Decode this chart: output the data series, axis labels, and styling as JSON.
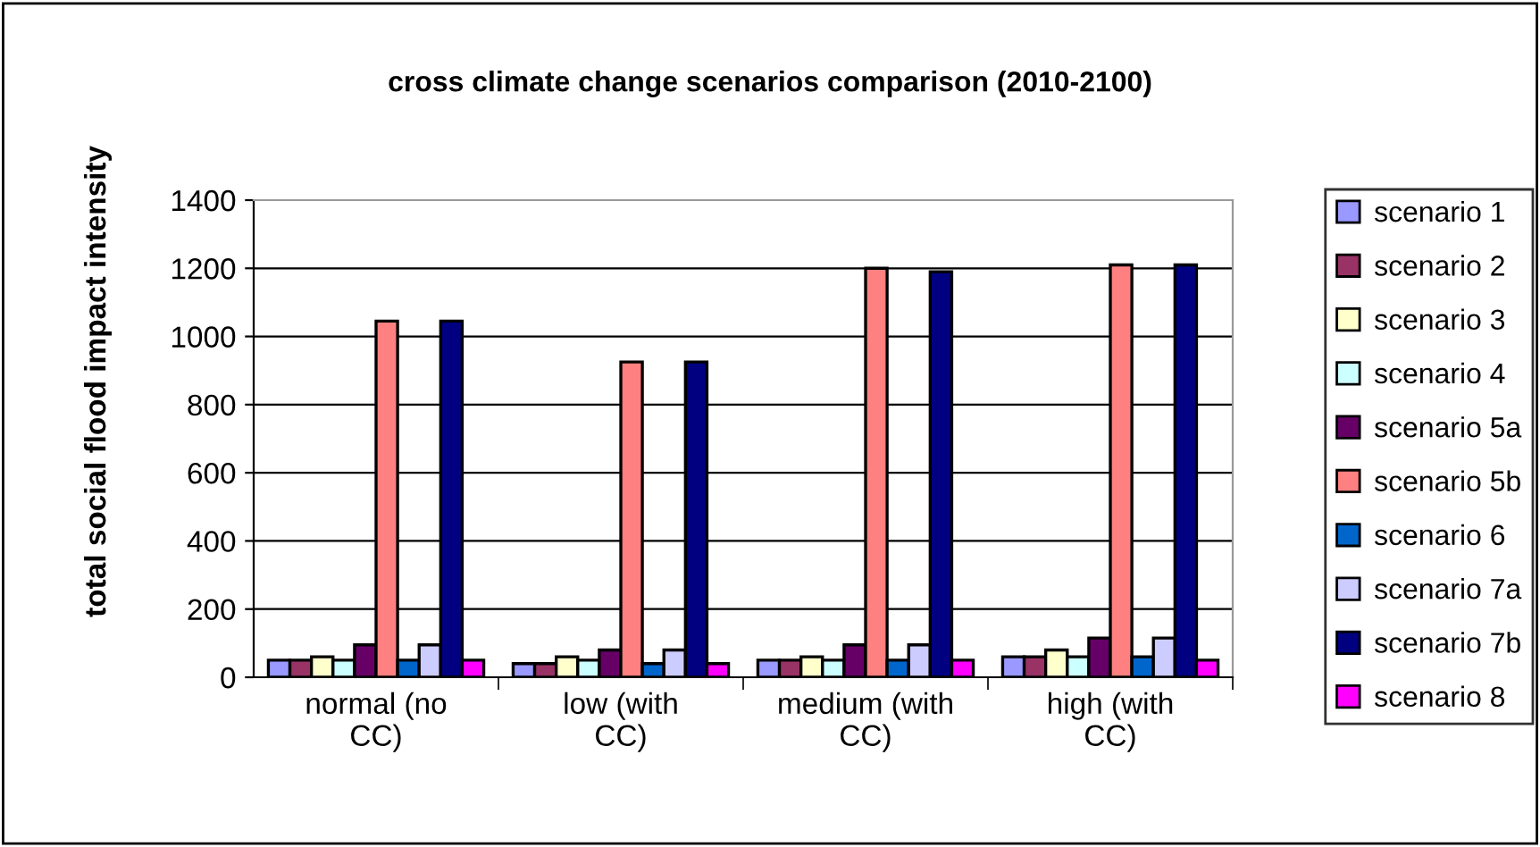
{
  "chart_data": {
    "type": "bar",
    "title": "cross climate change scenarios comparison (2010-2100)",
    "ylabel": "total social flood impact intensity",
    "categories": [
      "normal (no CC)",
      "low (with CC)",
      "medium (with CC)",
      "high (with CC)"
    ],
    "series": [
      {
        "name": "scenario 1",
        "color": "#9999ff",
        "values": [
          50,
          40,
          50,
          60
        ]
      },
      {
        "name": "scenario 2",
        "color": "#993366",
        "values": [
          50,
          40,
          50,
          60
        ]
      },
      {
        "name": "scenario 3",
        "color": "#ffffcc",
        "values": [
          60,
          60,
          60,
          80
        ]
      },
      {
        "name": "scenario 4",
        "color": "#ccffff",
        "values": [
          50,
          50,
          50,
          60
        ]
      },
      {
        "name": "scenario 5a",
        "color": "#660066",
        "values": [
          95,
          80,
          95,
          115
        ]
      },
      {
        "name": "scenario 5b",
        "color": "#ff8080",
        "values": [
          1045,
          925,
          1200,
          1210
        ]
      },
      {
        "name": "scenario 6",
        "color": "#0066cc",
        "values": [
          50,
          40,
          50,
          60
        ]
      },
      {
        "name": "scenario 7a",
        "color": "#ccccff",
        "values": [
          95,
          80,
          95,
          115
        ]
      },
      {
        "name": "scenario 7b",
        "color": "#000080",
        "values": [
          1045,
          925,
          1190,
          1210
        ]
      },
      {
        "name": "scenario 8",
        "color": "#ff00ff",
        "values": [
          50,
          40,
          50,
          50
        ]
      }
    ],
    "ylim": [
      0,
      1400
    ],
    "yticks": [
      0,
      200,
      400,
      600,
      800,
      1000,
      1200,
      1400
    ],
    "grid": "y",
    "legend": "right"
  }
}
